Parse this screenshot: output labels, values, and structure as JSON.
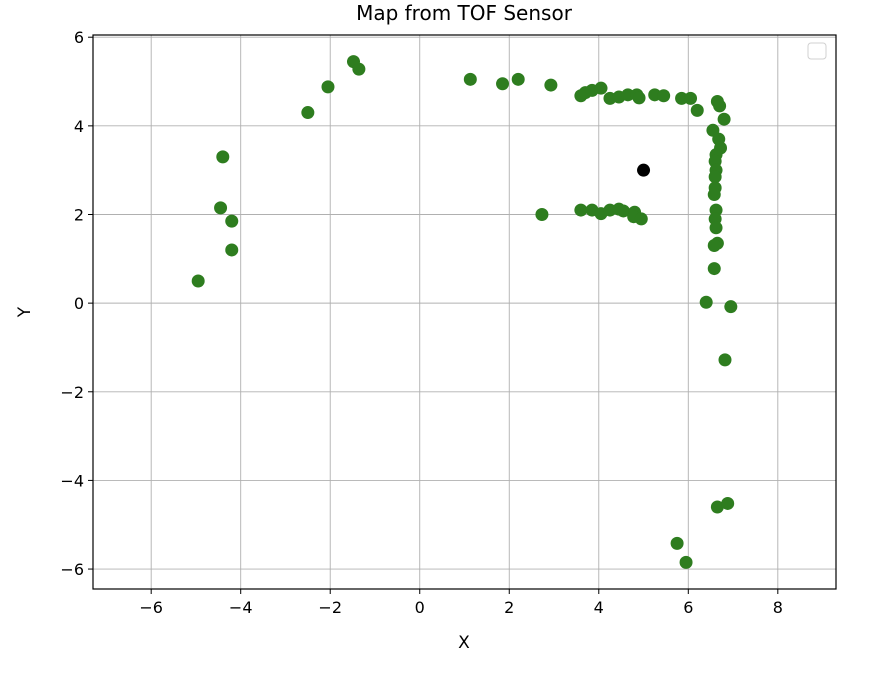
{
  "chart_data": {
    "type": "scatter",
    "title": "Map from TOF Sensor",
    "xlabel": "X",
    "ylabel": "Y",
    "xlim": [
      -7.3,
      9.3
    ],
    "ylim": [
      -6.45,
      6.05
    ],
    "xticks": [
      -6,
      -4,
      -2,
      0,
      2,
      4,
      6,
      8
    ],
    "yticks": [
      -6,
      -4,
      -2,
      0,
      2,
      4,
      6
    ],
    "xtick_labels": [
      "−6",
      "−4",
      "−2",
      "0",
      "2",
      "4",
      "6",
      "8"
    ],
    "ytick_labels": [
      "−6",
      "−4",
      "−2",
      "0",
      "2",
      "4",
      "6"
    ],
    "grid": true,
    "legend": {
      "placement": "top-right",
      "entries": []
    },
    "series": [
      {
        "color": "#2e7d1f",
        "points": [
          [
            -4.95,
            0.5
          ],
          [
            -4.2,
            1.2
          ],
          [
            -4.2,
            1.85
          ],
          [
            -4.45,
            2.15
          ],
          [
            -4.4,
            3.3
          ],
          [
            -2.5,
            4.3
          ],
          [
            -2.05,
            4.88
          ],
          [
            -1.48,
            5.45
          ],
          [
            -1.36,
            5.28
          ],
          [
            1.13,
            5.05
          ],
          [
            1.85,
            4.95
          ],
          [
            2.2,
            5.05
          ],
          [
            2.93,
            4.92
          ],
          [
            3.6,
            4.68
          ],
          [
            3.7,
            4.75
          ],
          [
            3.85,
            4.8
          ],
          [
            4.05,
            4.85
          ],
          [
            4.25,
            4.62
          ],
          [
            4.45,
            4.65
          ],
          [
            4.65,
            4.7
          ],
          [
            4.85,
            4.7
          ],
          [
            4.9,
            4.63
          ],
          [
            5.25,
            4.7
          ],
          [
            5.45,
            4.68
          ],
          [
            5.85,
            4.62
          ],
          [
            6.05,
            4.62
          ],
          [
            6.2,
            4.35
          ],
          [
            6.65,
            4.55
          ],
          [
            6.7,
            4.45
          ],
          [
            6.8,
            4.15
          ],
          [
            6.55,
            3.9
          ],
          [
            6.68,
            3.7
          ],
          [
            6.72,
            3.5
          ],
          [
            6.62,
            3.35
          ],
          [
            6.6,
            3.2
          ],
          [
            6.62,
            3.0
          ],
          [
            6.6,
            2.85
          ],
          [
            6.6,
            2.6
          ],
          [
            6.58,
            2.45
          ],
          [
            6.62,
            2.1
          ],
          [
            6.6,
            1.9
          ],
          [
            6.62,
            1.7
          ],
          [
            6.65,
            1.35
          ],
          [
            6.58,
            1.3
          ],
          [
            6.58,
            0.78
          ],
          [
            6.4,
            0.02
          ],
          [
            6.95,
            -0.08
          ],
          [
            6.82,
            -1.28
          ],
          [
            2.73,
            2.0
          ],
          [
            3.6,
            2.1
          ],
          [
            3.85,
            2.1
          ],
          [
            4.05,
            2.02
          ],
          [
            4.25,
            2.1
          ],
          [
            4.45,
            2.12
          ],
          [
            4.55,
            2.08
          ],
          [
            4.8,
            2.05
          ],
          [
            4.78,
            1.95
          ],
          [
            4.95,
            1.9
          ],
          [
            6.65,
            -4.6
          ],
          [
            6.88,
            -4.52
          ],
          [
            5.75,
            -5.42
          ],
          [
            5.95,
            -5.85
          ]
        ]
      },
      {
        "color": "#000000",
        "points": [
          [
            5.0,
            3.0
          ]
        ]
      }
    ]
  }
}
